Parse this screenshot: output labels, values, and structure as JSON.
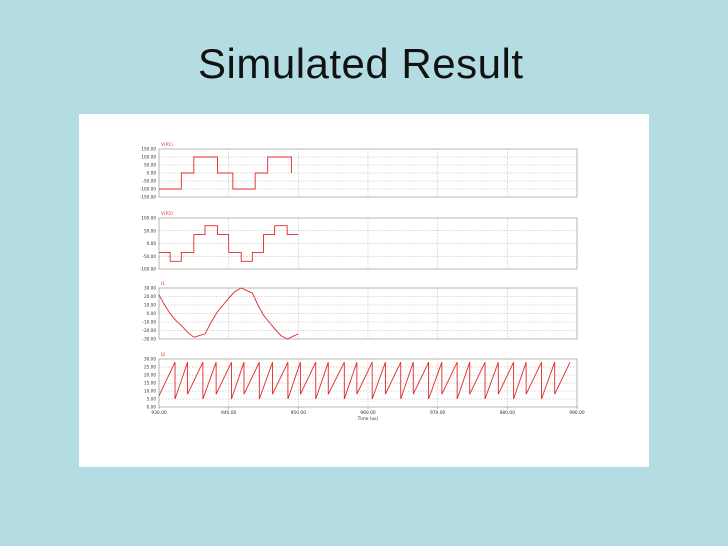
{
  "slide": {
    "title": "Simulated Result"
  },
  "chart_data": [
    {
      "type": "line",
      "ylabel": "V(P1)",
      "yticks": [
        "150.00",
        "100.00",
        "50.00",
        "0.00",
        "-50.00",
        "-100.00",
        "-150.00"
      ],
      "ylim": [
        -150,
        150
      ],
      "x": [
        930,
        933.2,
        933.2,
        935,
        935,
        938.4,
        938.4,
        940.6,
        940.6,
        943.8,
        943.8,
        945.6,
        945.6,
        949,
        949
      ],
      "series": [
        {
          "values": [
            -100,
            -100,
            0,
            0,
            100,
            100,
            0,
            0,
            -100,
            -100,
            0,
            0,
            100,
            100,
            0
          ]
        }
      ]
    },
    {
      "type": "line",
      "ylabel": "V(P2)",
      "yticks": [
        "100.00",
        "50.00",
        "0.00",
        "-50.00",
        "-100.00"
      ],
      "ylim": [
        -100,
        100
      ],
      "x": [
        930,
        931.6,
        931.6,
        933.2,
        933.2,
        935,
        935,
        936.6,
        936.6,
        938.4,
        938.4,
        940,
        940,
        941.8,
        941.8,
        943.4,
        943.4,
        945,
        945,
        946.6,
        946.6,
        948.4,
        948.4,
        950
      ],
      "series": [
        {
          "values": [
            -35,
            -35,
            -70,
            -70,
            -35,
            -35,
            35,
            35,
            70,
            70,
            35,
            35,
            -35,
            -35,
            -70,
            -70,
            -35,
            -35,
            35,
            35,
            70,
            70,
            35,
            35
          ]
        }
      ]
    },
    {
      "type": "line",
      "ylabel": "I1",
      "yticks": [
        "30.00",
        "20.00",
        "10.00",
        "0.00",
        "-10.00",
        "-20.00",
        "-30.00"
      ],
      "ylim": [
        -30,
        30
      ],
      "x": [
        930,
        930.8,
        931.6,
        932.4,
        933.2,
        934.1,
        935,
        935.8,
        936.6,
        937.5,
        938.4,
        939.2,
        940,
        940.9,
        941.8,
        942.6,
        943.4,
        944.2,
        945,
        945.8,
        946.6,
        947.5,
        948.4,
        949.2,
        950
      ],
      "series": [
        {
          "values": [
            22,
            10,
            0,
            -8,
            -14,
            -22,
            -28,
            -26,
            -24,
            -10,
            2,
            10,
            18,
            26,
            30,
            27,
            24,
            10,
            -2,
            -10,
            -18,
            -26,
            -30,
            -27,
            -24
          ]
        }
      ]
    },
    {
      "type": "line",
      "ylabel": "I2",
      "yticks": [
        "30.00",
        "25.00",
        "20.00",
        "15.00",
        "10.00",
        "5.00",
        "0.00"
      ],
      "ylim": [
        0,
        30
      ],
      "xlabel": "Time (us)",
      "xticks": [
        "930.00",
        "940.00",
        "950.00",
        "960.00",
        "970.00",
        "980.00",
        "990.00"
      ],
      "xlim": [
        930,
        990
      ],
      "x": [
        930,
        932.3,
        932.3,
        934.1,
        934.1,
        936.3,
        936.3,
        938.2,
        938.2,
        940.4,
        940.4,
        942.2,
        942.2,
        944.4,
        944.4,
        946.3,
        946.3,
        948.5,
        948.5,
        950.3,
        950.3,
        952.5,
        952.5,
        954.3,
        954.3,
        956.6,
        956.6,
        958.4,
        958.4,
        960.6,
        960.6,
        962.5,
        962.5,
        964.7,
        964.7,
        966.5,
        966.5,
        968.7,
        968.7,
        970.6,
        970.6,
        972.8,
        972.8,
        974.6,
        974.6,
        976.8,
        976.8,
        978.7,
        978.7,
        980.9,
        980.9,
        982.7,
        982.7,
        984.9,
        984.9,
        986.8,
        986.8,
        989
      ],
      "series": [
        {
          "values": [
            7,
            28,
            5,
            28,
            8,
            28,
            5,
            28,
            8,
            28,
            5,
            28,
            8,
            28,
            5,
            28,
            8,
            28,
            5,
            28,
            8,
            28,
            5,
            28,
            8,
            28,
            5,
            28,
            8,
            28,
            5,
            28,
            8,
            28,
            5,
            28,
            8,
            28,
            5,
            28,
            8,
            28,
            5,
            28,
            8,
            28,
            5,
            28,
            8,
            28,
            5,
            28,
            8,
            28,
            5,
            28,
            8,
            28
          ]
        }
      ]
    }
  ]
}
